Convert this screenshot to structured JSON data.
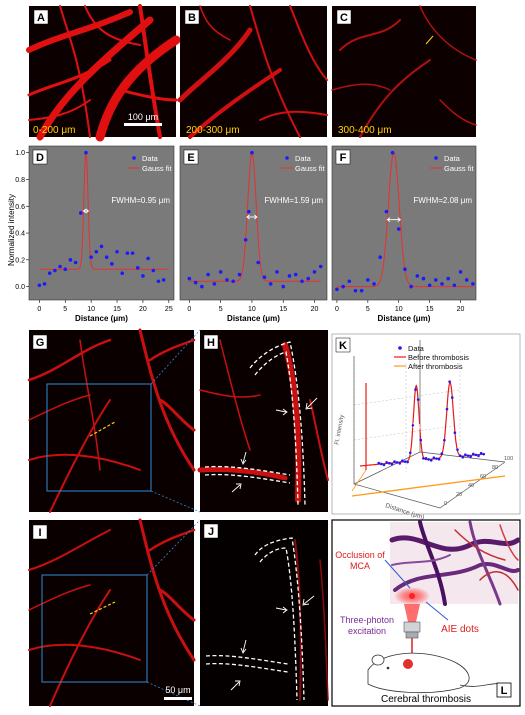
{
  "panels": {
    "A": {
      "letter": "A",
      "depth": "0-200 μm",
      "scale": "100 μm"
    },
    "B": {
      "letter": "B",
      "depth": "200-300 μm"
    },
    "C": {
      "letter": "C",
      "depth": "300-400 μm"
    },
    "D": {
      "letter": "D"
    },
    "E": {
      "letter": "E"
    },
    "F": {
      "letter": "F"
    },
    "G": {
      "letter": "G"
    },
    "H": {
      "letter": "H"
    },
    "I": {
      "letter": "I"
    },
    "J": {
      "letter": "J",
      "scale": "50 μm"
    },
    "K": {
      "letter": "K"
    },
    "L": {
      "letter": "L",
      "occlusion": [
        "Occlusion of",
        "MCA"
      ],
      "aie": "AIE dots",
      "excitation": [
        "Three-photon",
        "excitation"
      ],
      "caption": "Cerebral thrombosis"
    }
  },
  "colors": {
    "data": "#1a1aff",
    "fit": "#e83030",
    "before": "#e81a1a",
    "after": "#ff9a1a",
    "panel_bg": "#7a7a7a"
  },
  "chart_data": [
    {
      "type": "scatter",
      "panel": "D",
      "ylabel": "Normalized intensity",
      "xlabel": "Distance (μm)",
      "xlim": [
        -2,
        26
      ],
      "ylim": [
        -0.1,
        1.05
      ],
      "xticks": [
        0,
        5,
        10,
        15,
        20,
        25
      ],
      "yticks": [
        0.0,
        0.2,
        0.4,
        0.6,
        0.8,
        1.0
      ],
      "xtick_labels": [
        "0",
        "5",
        "10",
        "15",
        "20",
        "25"
      ],
      "ytick_labels": [
        "0.0",
        "0.2",
        "0.4",
        "0.6",
        "0.8",
        "1.0"
      ],
      "legend": [
        "Data",
        "Gauss fit"
      ],
      "legend_position": "top-right",
      "annotation": "FWHM=0.95 μm",
      "points": {
        "x": [
          0,
          1,
          2,
          3,
          4,
          5,
          6,
          7,
          8,
          9,
          10,
          11,
          12,
          13,
          14,
          15,
          16,
          17,
          18,
          19,
          20,
          21,
          22,
          23,
          24
        ],
        "y": [
          0.01,
          0.02,
          0.1,
          0.12,
          0.15,
          0.13,
          0.2,
          0.18,
          0.55,
          1.0,
          0.22,
          0.26,
          0.3,
          0.22,
          0.17,
          0.26,
          0.1,
          0.25,
          0.25,
          0.14,
          0.08,
          0.21,
          0.12,
          0.04,
          0.05
        ]
      },
      "fit": {
        "baseline": 0.13,
        "amplitude": 0.87,
        "center": 9.0,
        "fwhm": 0.95,
        "x_range": [
          0,
          25
        ]
      }
    },
    {
      "type": "scatter",
      "panel": "E",
      "xlabel": "Distance (μm)",
      "xlim": [
        -1.5,
        22
      ],
      "ylim": [
        -0.1,
        1.05
      ],
      "xticks": [
        0,
        5,
        10,
        15,
        20
      ],
      "xtick_labels": [
        "0",
        "5",
        "10",
        "15",
        "20"
      ],
      "legend": [
        "Data",
        "Gauss fit"
      ],
      "legend_position": "top-right",
      "annotation": "FWHM=1.59 μm",
      "points": {
        "x": [
          0,
          1,
          2,
          3,
          4,
          5,
          6,
          7,
          8,
          9,
          9.5,
          10,
          11,
          12,
          13,
          14,
          15,
          16,
          17,
          18,
          19,
          20,
          21
        ],
        "y": [
          0.06,
          0.03,
          0.0,
          0.09,
          0.02,
          0.11,
          0.05,
          0.04,
          0.09,
          0.35,
          0.56,
          1.0,
          0.18,
          0.07,
          0.02,
          0.11,
          0.0,
          0.08,
          0.09,
          0.04,
          0.06,
          0.11,
          0.15
        ]
      },
      "fit": {
        "baseline": 0.04,
        "amplitude": 0.96,
        "center": 10.0,
        "fwhm": 1.59,
        "x_range": [
          0,
          21
        ]
      }
    },
    {
      "type": "scatter",
      "panel": "F",
      "xlabel": "Distance (μm)",
      "xlim": [
        -0.8,
        22.5
      ],
      "ylim": [
        -0.1,
        1.05
      ],
      "xticks": [
        0,
        5,
        10,
        15,
        20
      ],
      "xtick_labels": [
        "0",
        "5",
        "10",
        "15",
        "20"
      ],
      "legend": [
        "Data",
        "Gauss fit"
      ],
      "legend_position": "top-right",
      "annotation": "FWHM=2.08 μm",
      "points": {
        "x": [
          0,
          1,
          2,
          3,
          4,
          5,
          6,
          7,
          8,
          9,
          10,
          11,
          12,
          13,
          14,
          15,
          16,
          17,
          18,
          19,
          20,
          21,
          22
        ],
        "y": [
          -0.02,
          0.0,
          0.04,
          -0.03,
          -0.03,
          0.05,
          0.02,
          0.22,
          0.56,
          1.0,
          0.43,
          0.13,
          0.0,
          0.08,
          0.06,
          0.01,
          0.05,
          0.02,
          0.06,
          0.01,
          0.11,
          0.05,
          0.02
        ]
      },
      "fit": {
        "baseline": 0.0,
        "amplitude": 1.0,
        "center": 9.2,
        "fwhm": 2.08,
        "x_range": [
          0,
          22
        ]
      }
    },
    {
      "type": "line",
      "panel": "K",
      "ylabel": "Fl. intensity",
      "xlabel": "Distance (μm)",
      "ztick_labels": [
        "0",
        "20",
        "40",
        "60",
        "80",
        "100"
      ],
      "legend": [
        "Data",
        "Before thrombosis",
        "After thrombosis"
      ],
      "legend_position": "top-right",
      "annotations": [
        "5.22 μm",
        "6.24 μm"
      ],
      "series": [
        {
          "name": "Before thrombosis",
          "peaks": [
            {
              "center": 45,
              "width": 5.22
            },
            {
              "center": 72,
              "width": 6.24
            }
          ]
        },
        {
          "name": "After thrombosis"
        }
      ]
    }
  ]
}
